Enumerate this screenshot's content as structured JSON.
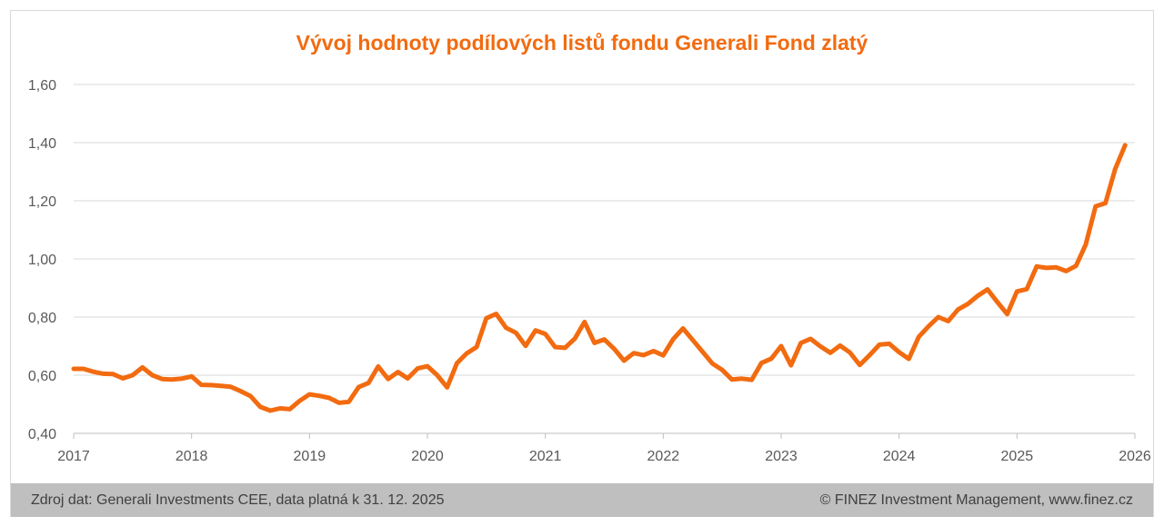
{
  "chart_data": {
    "type": "line",
    "title": "Vývoj hodnoty podílových listů fondu Generali Fond zlatý",
    "xlabel": "",
    "ylabel": "",
    "ylim": [
      0.4,
      1.6
    ],
    "xlim": [
      2017,
      2026
    ],
    "y_ticks": [
      "0,40",
      "0,60",
      "0,80",
      "1,00",
      "1,20",
      "1,40",
      "1,60"
    ],
    "x_ticks": [
      "2017",
      "2018",
      "2019",
      "2020",
      "2021",
      "2022",
      "2023",
      "2024",
      "2025",
      "2026"
    ],
    "grid": "horizontal",
    "line_color": "#f26b10",
    "series": [
      {
        "x": [
          2017.0,
          2017.083,
          2017.167,
          2017.25,
          2017.333,
          2017.417,
          2017.5,
          2017.583,
          2017.667,
          2017.75,
          2017.833,
          2017.917,
          2018.0,
          2018.083,
          2018.167,
          2018.25,
          2018.333,
          2018.417,
          2018.5,
          2018.583,
          2018.667,
          2018.75,
          2018.833,
          2018.917,
          2019.0,
          2019.083,
          2019.167,
          2019.25,
          2019.333,
          2019.417,
          2019.5,
          2019.583,
          2019.667,
          2019.75,
          2019.833,
          2019.917,
          2020.0,
          2020.083,
          2020.167,
          2020.25,
          2020.333,
          2020.417,
          2020.5,
          2020.583,
          2020.667,
          2020.75,
          2020.833,
          2020.917,
          2021.0,
          2021.083,
          2021.167,
          2021.25,
          2021.333,
          2021.417,
          2021.5,
          2021.583,
          2021.667,
          2021.75,
          2021.833,
          2021.917,
          2022.0,
          2022.083,
          2022.167,
          2022.25,
          2022.333,
          2022.417,
          2022.5,
          2022.583,
          2022.667,
          2022.75,
          2022.833,
          2022.917,
          2023.0,
          2023.083,
          2023.167,
          2023.25,
          2023.333,
          2023.417,
          2023.5,
          2023.583,
          2023.667,
          2023.75,
          2023.833,
          2023.917,
          2024.0,
          2024.083,
          2024.167,
          2024.25,
          2024.333,
          2024.417,
          2024.5,
          2024.583,
          2024.667,
          2024.75,
          2024.833,
          2024.917,
          2025.0,
          2025.083,
          2025.167,
          2025.25,
          2025.333,
          2025.417,
          2025.5,
          2025.583,
          2025.667,
          2025.75,
          2025.833,
          2025.917
        ],
        "values": [
          0.622,
          0.622,
          0.612,
          0.605,
          0.604,
          0.589,
          0.6,
          0.627,
          0.6,
          0.587,
          0.585,
          0.588,
          0.596,
          0.567,
          0.566,
          0.563,
          0.56,
          0.545,
          0.528,
          0.491,
          0.478,
          0.486,
          0.483,
          0.512,
          0.534,
          0.529,
          0.522,
          0.505,
          0.508,
          0.559,
          0.573,
          0.63,
          0.587,
          0.611,
          0.589,
          0.623,
          0.631,
          0.6,
          0.558,
          0.641,
          0.675,
          0.697,
          0.796,
          0.811,
          0.763,
          0.746,
          0.701,
          0.754,
          0.742,
          0.697,
          0.694,
          0.726,
          0.783,
          0.711,
          0.723,
          0.691,
          0.65,
          0.676,
          0.669,
          0.683,
          0.668,
          0.723,
          0.761,
          0.721,
          0.681,
          0.64,
          0.618,
          0.585,
          0.588,
          0.584,
          0.642,
          0.657,
          0.7,
          0.634,
          0.711,
          0.725,
          0.699,
          0.677,
          0.702,
          0.678,
          0.635,
          0.669,
          0.705,
          0.708,
          0.679,
          0.656,
          0.732,
          0.768,
          0.8,
          0.786,
          0.826,
          0.845,
          0.873,
          0.895,
          0.852,
          0.81,
          0.888,
          0.896,
          0.974,
          0.969,
          0.971,
          0.958,
          0.976,
          1.049,
          1.181,
          1.192,
          1.309,
          1.391
        ]
      }
    ]
  },
  "footer": {
    "source": "Zdroj dat: Generali Investments CEE, data platná k 31. 12. 2025",
    "copyright": "© FINEZ Investment Management, www.finez.cz"
  }
}
